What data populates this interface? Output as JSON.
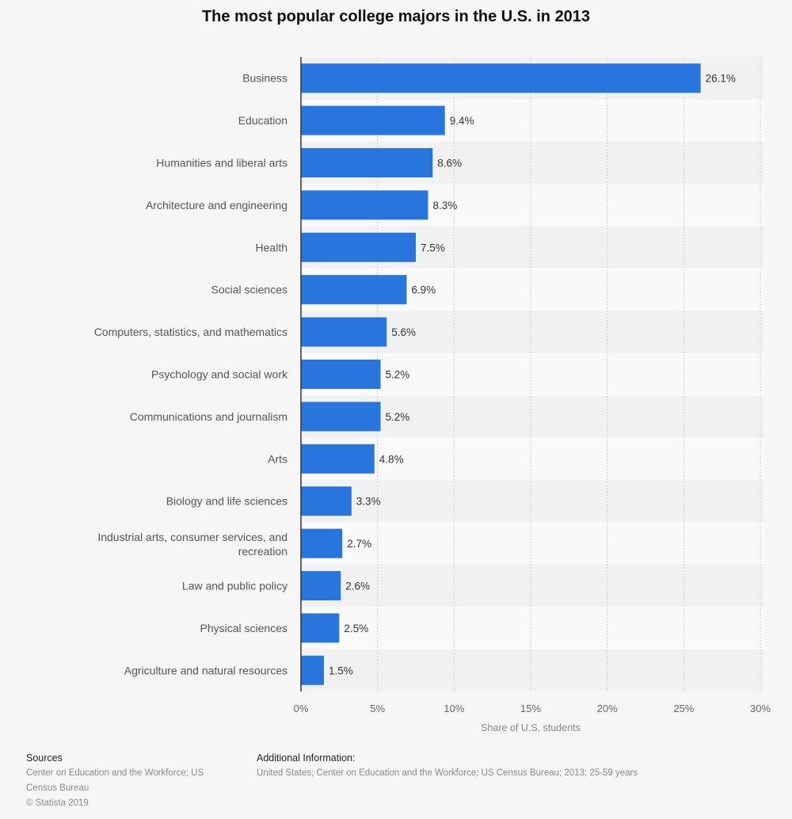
{
  "chart_data": {
    "type": "bar",
    "orientation": "horizontal",
    "title": "The most popular college majors in the U.S. in 2013",
    "xlabel": "Share of U.S. students",
    "ylabel": "",
    "categories": [
      "Business",
      "Education",
      "Humanities and liberal arts",
      "Architecture and engineering",
      "Health",
      "Social sciences",
      "Computers, statistics, and mathematics",
      "Psychology and social work",
      "Communications and journalism",
      "Arts",
      "Biology and life sciences",
      "Industrial arts, consumer services, and recreation",
      "Law and public policy",
      "Physical sciences",
      "Agriculture and natural resources"
    ],
    "values": [
      26.1,
      9.4,
      8.6,
      8.3,
      7.5,
      6.9,
      5.6,
      5.2,
      5.2,
      4.8,
      3.3,
      2.7,
      2.6,
      2.5,
      1.5
    ],
    "data_labels": [
      "26.1%",
      "9.4%",
      "8.6%",
      "8.3%",
      "7.5%",
      "6.9%",
      "5.6%",
      "5.2%",
      "5.2%",
      "4.8%",
      "3.3%",
      "2.7%",
      "2.6%",
      "2.5%",
      "1.5%"
    ],
    "xlim": [
      0,
      30
    ],
    "xticks": [
      0,
      5,
      10,
      15,
      20,
      25,
      30
    ],
    "xtick_labels": [
      "0%",
      "5%",
      "10%",
      "15%",
      "20%",
      "25%",
      "30%"
    ],
    "grid": true,
    "colors": {
      "bar": "#2876dd",
      "background": "#f6f6f6"
    }
  },
  "footer": {
    "sources_heading": "Sources",
    "sources_line1": "Center on Education and the Workforce; US",
    "sources_line2": "Census Bureau",
    "copyright": "© Statista 2019",
    "additional_heading": "Additional Information:",
    "additional_text": "United States; Center on Education and the Workforce; US Census Bureau; 2013; 25-59 years"
  }
}
